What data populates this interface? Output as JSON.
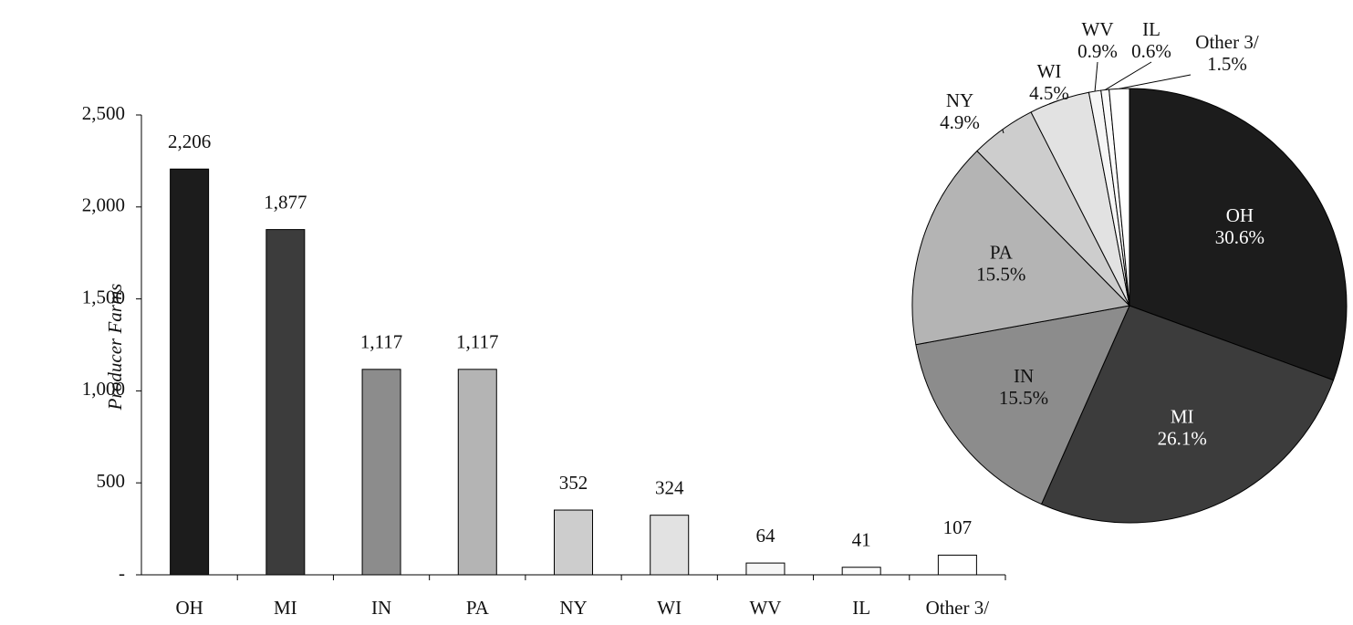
{
  "chart_data": [
    {
      "type": "bar",
      "y_label": "Producer Farms",
      "categories": [
        "OH",
        "MI",
        "IN",
        "PA",
        "NY",
        "WI",
        "WV",
        "IL",
        "Other 3/"
      ],
      "values": [
        2206,
        1877,
        1117,
        1117,
        352,
        324,
        64,
        41,
        107
      ],
      "value_labels": [
        "2,206",
        "1,877",
        "1,117",
        "1,117",
        "352",
        "324",
        "64",
        "41",
        "107"
      ],
      "colors": [
        "#1c1c1c",
        "#3c3c3c",
        "#8c8c8c",
        "#b4b4b4",
        "#cdcdcd",
        "#e2e2e2",
        "#f6f6f6",
        "#fbfbfb",
        "#ffffff"
      ],
      "ylim": [
        0,
        2500
      ],
      "yticks": [
        {
          "value": 0,
          "label": "-"
        },
        500,
        {
          "value": 1000,
          "label": "1,000"
        },
        {
          "value": 1500,
          "label": "1,500"
        },
        {
          "value": 2000,
          "label": "2,000"
        },
        {
          "value": 2500,
          "label": "2,500"
        }
      ]
    },
    {
      "type": "pie",
      "categories": [
        "OH",
        "MI",
        "IN",
        "PA",
        "NY",
        "WI",
        "WV",
        "IL",
        "Other 3/"
      ],
      "values": [
        30.6,
        26.1,
        15.5,
        15.5,
        4.9,
        4.5,
        0.9,
        0.6,
        1.5
      ],
      "value_labels": [
        "30.6%",
        "26.1%",
        "15.5%",
        "15.5%",
        "4.9%",
        "4.5%",
        "0.9%",
        "0.6%",
        "1.5%"
      ],
      "colors": [
        "#1c1c1c",
        "#3c3c3c",
        "#8c8c8c",
        "#b4b4b4",
        "#cdcdcd",
        "#e2e2e2",
        "#f6f6f6",
        "#fbfbfb",
        "#ffffff"
      ]
    }
  ]
}
